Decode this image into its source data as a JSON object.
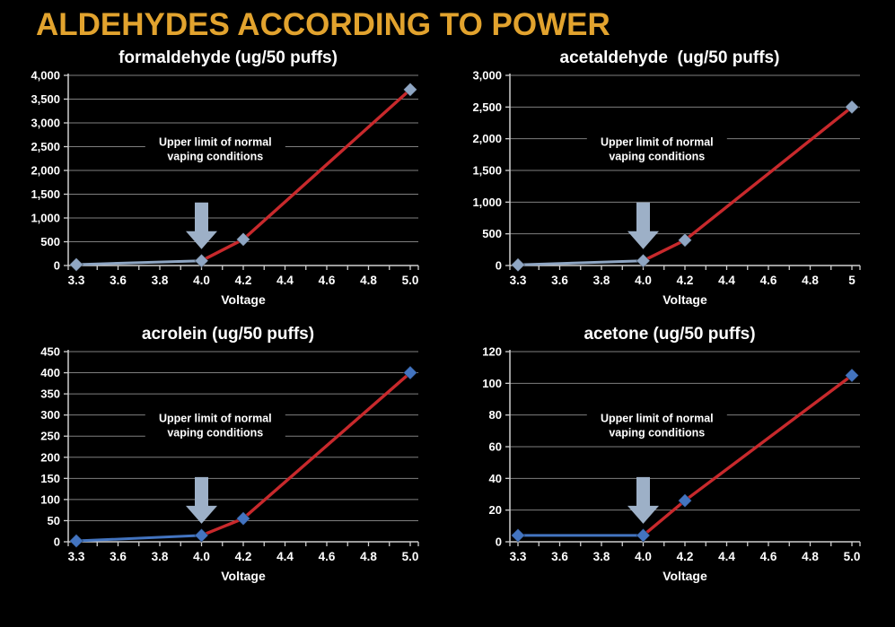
{
  "page_title": "ALDEHYDES ACCORDING TO POWER",
  "colors": {
    "background": "#000000",
    "heading": "#E2A32E",
    "chart_title_text": "#FFFFFF",
    "gridline": "#7f7f7f",
    "axis": "#d0d0d0",
    "tick_label": "#FFFFFF",
    "annotation_text": "#FFFFFF",
    "arrow": "#9DB0C7",
    "high_power_line": "#C8292C",
    "normal_line_top_charts": "#8FA6C3",
    "normal_line_bottom_charts": "#4374C0"
  },
  "chart_data": [
    {
      "type": "line",
      "title": "formaldehyde (ug/50 puffs)",
      "xlabel": "Voltage",
      "categories": [
        "3.3",
        "3.6",
        "3.8",
        "4.0",
        "4.2",
        "4.4",
        "4.6",
        "4.8",
        "5.0"
      ],
      "yticks": [
        "4,000",
        "3,500",
        "3,000",
        "2,500",
        "2,000",
        "1,500",
        "1,000",
        "500",
        "0"
      ],
      "ylim": [
        0,
        4000
      ],
      "points": {
        "x": [
          "3.3",
          "4.0",
          "4.2",
          "5.0"
        ],
        "y": [
          20,
          100,
          550,
          3700
        ]
      },
      "split_x": "4.0",
      "normal_color": "#8FA6C3",
      "high_color": "#C8292C",
      "marker_color": "#8FA6C3",
      "grid": true,
      "legend": "none",
      "annotation": {
        "line1": "Upper limit of normal",
        "line2": "vaping conditions",
        "arrow_at_x": "4.0"
      }
    },
    {
      "type": "line",
      "title": "acetaldehyde  (ug/50 puffs)",
      "xlabel": "Voltage",
      "categories": [
        "3.3",
        "3.6",
        "3.8",
        "4.0",
        "4.2",
        "4.4",
        "4.6",
        "4.8",
        "5"
      ],
      "yticks": [
        "3,000",
        "2,500",
        "2,000",
        "1,500",
        "1,000",
        "500",
        "0"
      ],
      "ylim": [
        0,
        3000
      ],
      "points": {
        "x": [
          "3.3",
          "4.0",
          "4.2",
          "5"
        ],
        "y": [
          10,
          75,
          400,
          2500
        ]
      },
      "split_x": "4.0",
      "normal_color": "#8FA6C3",
      "high_color": "#C8292C",
      "marker_color": "#8FA6C3",
      "grid": true,
      "legend": "none",
      "annotation": {
        "line1": "Upper limit of normal",
        "line2": "vaping conditions",
        "arrow_at_x": "4.0"
      }
    },
    {
      "type": "line",
      "title": "acrolein (ug/50 puffs)",
      "xlabel": "Voltage",
      "categories": [
        "3.3",
        "3.6",
        "3.8",
        "4.0",
        "4.2",
        "4.4",
        "4.6",
        "4.8",
        "5.0"
      ],
      "yticks": [
        "450",
        "400",
        "350",
        "300",
        "250",
        "200",
        "150",
        "100",
        "50",
        "0"
      ],
      "ylim": [
        0,
        450
      ],
      "points": {
        "x": [
          "3.3",
          "4.0",
          "4.2",
          "5.0"
        ],
        "y": [
          2,
          15,
          55,
          400
        ]
      },
      "split_x": "4.0",
      "normal_color": "#4374C0",
      "high_color": "#C8292C",
      "marker_color": "#4374C0",
      "grid": true,
      "legend": "none",
      "annotation": {
        "line1": "Upper limit of normal",
        "line2": "vaping conditions",
        "arrow_at_x": "4.0"
      }
    },
    {
      "type": "line",
      "title": "acetone (ug/50 puffs)",
      "xlabel": "Voltage",
      "categories": [
        "3.3",
        "3.6",
        "3.8",
        "4.0",
        "4.2",
        "4.4",
        "4.6",
        "4.8",
        "5.0"
      ],
      "yticks": [
        "120",
        "100",
        "80",
        "60",
        "40",
        "20",
        "0"
      ],
      "ylim": [
        0,
        120
      ],
      "points": {
        "x": [
          "3.3",
          "4.0",
          "4.2",
          "5.0"
        ],
        "y": [
          4,
          4,
          26,
          105
        ]
      },
      "split_x": "4.0",
      "normal_color": "#4374C0",
      "high_color": "#C8292C",
      "marker_color": "#4374C0",
      "grid": true,
      "legend": "none",
      "annotation": {
        "line1": "Upper limit of normal",
        "line2": "vaping conditions",
        "arrow_at_x": "4.0"
      }
    }
  ]
}
